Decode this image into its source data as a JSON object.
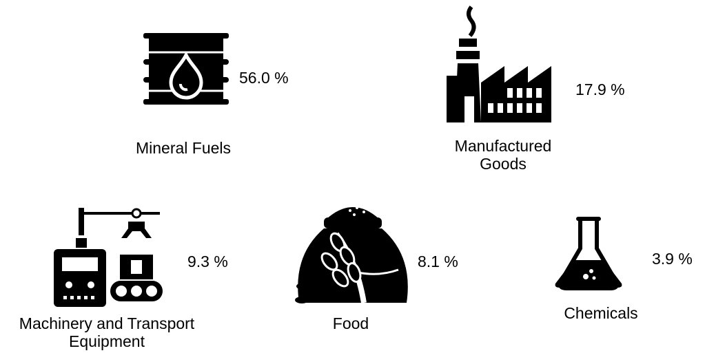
{
  "items": [
    {
      "label": "Mineral Fuels",
      "share": "56.0 %"
    },
    {
      "label": "Manufactured Goods",
      "share": "17.9 %"
    },
    {
      "label": "Machinery and Transport Equipment",
      "share": "9.3 %"
    },
    {
      "label": "Food",
      "share": "8.1 %"
    },
    {
      "label": "Chemicals",
      "share": "3.9 %"
    }
  ]
}
